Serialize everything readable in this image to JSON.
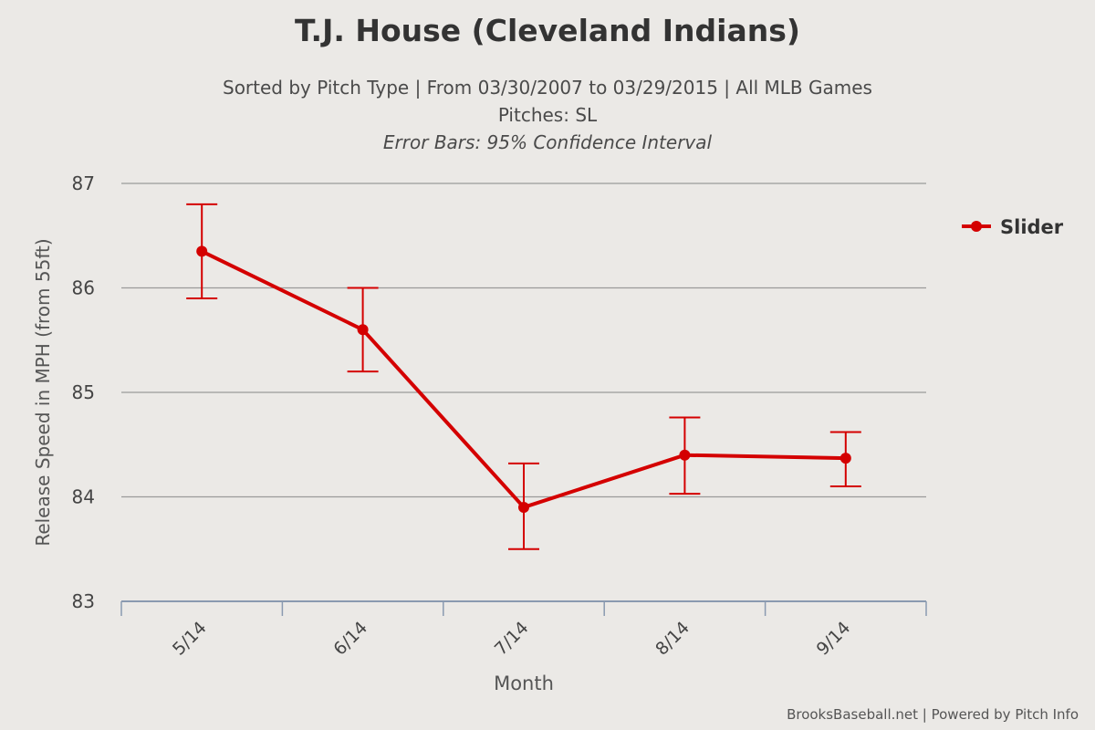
{
  "header": {
    "title": "T.J. House (Cleveland Indians)",
    "subtitle_line1": "Sorted by Pitch Type | From 03/30/2007 to 03/29/2015 | All MLB Games",
    "subtitle_line2": "Pitches: SL",
    "subtitle_line3": "Error Bars: 95% Confidence Interval"
  },
  "footer": {
    "credit": "BrooksBaseball.net | Powered by Pitch Info"
  },
  "colors": {
    "series": "#d40000",
    "grid": "#9a9a9a",
    "axis": "#8a9ab0",
    "background": "#ebe9e6"
  },
  "chart_data": {
    "type": "line",
    "title": "T.J. House (Cleveland Indians)",
    "xlabel": "Month",
    "ylabel": "Release Speed in MPH (from 55ft)",
    "categories": [
      "5/14",
      "6/14",
      "7/14",
      "8/14",
      "9/14"
    ],
    "ylim": [
      83,
      87
    ],
    "yticks": [
      "83",
      "84",
      "85",
      "86",
      "87"
    ],
    "grid": true,
    "legend_position": "right",
    "series": [
      {
        "name": "Slider",
        "values": [
          86.35,
          85.6,
          83.9,
          84.4,
          84.37
        ],
        "error_low": [
          85.9,
          85.2,
          83.5,
          84.03,
          84.1
        ],
        "error_high": [
          86.8,
          86.0,
          84.32,
          84.76,
          84.62
        ]
      }
    ]
  }
}
